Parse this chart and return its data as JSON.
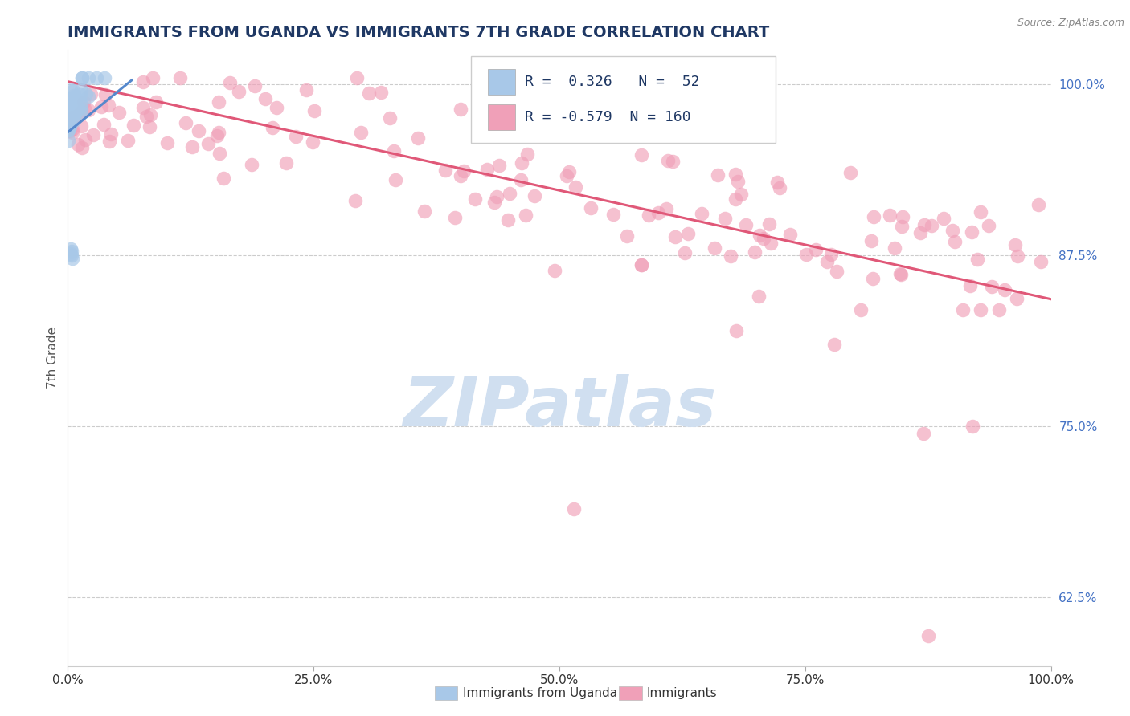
{
  "title": "IMMIGRANTS FROM UGANDA VS IMMIGRANTS 7TH GRADE CORRELATION CHART",
  "source": "Source: ZipAtlas.com",
  "ylabel": "7th Grade",
  "xlim": [
    0.0,
    1.0
  ],
  "ylim": [
    0.575,
    1.025
  ],
  "yticks": [
    0.625,
    0.75,
    0.875,
    1.0
  ],
  "ytick_labels": [
    "62.5%",
    "75.0%",
    "87.5%",
    "100.0%"
  ],
  "xtick_labels": [
    "0.0%",
    "25.0%",
    "50.0%",
    "75.0%",
    "100.0%"
  ],
  "xticks": [
    0.0,
    0.25,
    0.5,
    0.75,
    1.0
  ],
  "blue_R": 0.326,
  "blue_N": 52,
  "pink_R": -0.579,
  "pink_N": 160,
  "blue_color": "#A8C8E8",
  "pink_color": "#F0A0B8",
  "blue_line_color": "#5588CC",
  "pink_line_color": "#E05878",
  "legend_label_blue": "Immigrants from Uganda",
  "legend_label_pink": "Immigrants",
  "watermark": "ZIPatlas",
  "watermark_color": "#D0DFF0",
  "background_color": "#FFFFFF",
  "title_color": "#1F3864",
  "source_color": "#888888",
  "grid_color": "#CCCCCC"
}
